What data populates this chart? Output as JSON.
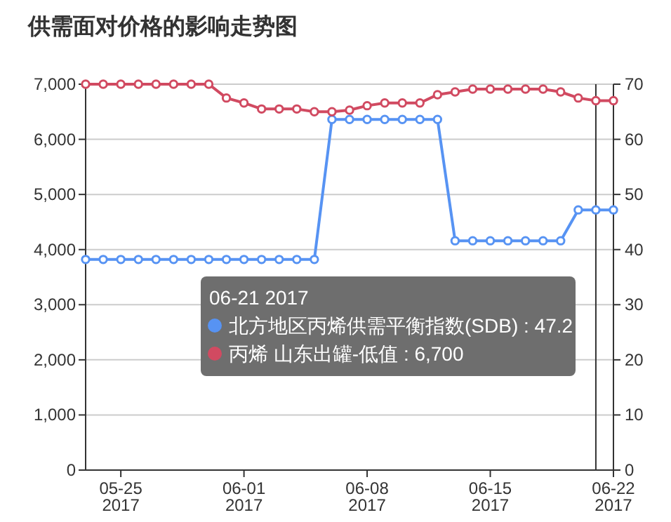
{
  "chart_data": {
    "type": "line",
    "title": "供需面对价格的影响走势图",
    "x": [
      "2017-05-23",
      "2017-05-24",
      "2017-05-25",
      "2017-05-26",
      "2017-05-27",
      "2017-05-28",
      "2017-05-29",
      "2017-05-30",
      "2017-05-31",
      "2017-06-01",
      "2017-06-02",
      "2017-06-03",
      "2017-06-04",
      "2017-06-05",
      "2017-06-06",
      "2017-06-07",
      "2017-06-08",
      "2017-06-09",
      "2017-06-10",
      "2017-06-11",
      "2017-06-12",
      "2017-06-13",
      "2017-06-14",
      "2017-06-15",
      "2017-06-16",
      "2017-06-17",
      "2017-06-18",
      "2017-06-19",
      "2017-06-20",
      "2017-06-21",
      "2017-06-22"
    ],
    "series": [
      {
        "color": "#5793f3",
        "axis": "y2",
        "values": [
          38.2,
          38.2,
          38.2,
          38.2,
          38.2,
          38.2,
          38.2,
          38.2,
          38.2,
          38.2,
          38.2,
          38.2,
          38.2,
          38.2,
          63.6,
          63.6,
          63.6,
          63.6,
          63.6,
          63.6,
          63.6,
          41.6,
          41.6,
          41.6,
          41.6,
          41.6,
          41.6,
          41.6,
          47.2,
          47.2,
          47.2
        ]
      },
      {
        "color": "#d14a61",
        "values": [
          7000,
          7000,
          7000,
          7000,
          7000,
          7000,
          7000,
          7000,
          6750,
          6660,
          6550,
          6550,
          6550,
          6500,
          6500,
          6530,
          6610,
          6660,
          6660,
          6660,
          6810,
          6860,
          6910,
          6910,
          6910,
          6910,
          6910,
          6860,
          6750,
          6700,
          6700
        ]
      }
    ],
    "xlim": [
      "2017-05-23",
      "2017-06-22"
    ],
    "xticks": [
      {
        "value": "2017-05-25",
        "label": "05-25 2017"
      },
      {
        "value": "2017-06-01",
        "label": "06-01 2017"
      },
      {
        "value": "2017-06-08",
        "label": "06-08 2017"
      },
      {
        "value": "2017-06-15",
        "label": "06-15 2017"
      },
      {
        "value": "2017-06-22",
        "label": "06-22 2017"
      }
    ],
    "ylim": [
      0,
      7000
    ],
    "yticks": [
      {
        "value": 0,
        "label": "0"
      },
      {
        "value": 1000,
        "label": "1,000"
      },
      {
        "value": 2000,
        "label": "2,000"
      },
      {
        "value": 3000,
        "label": "3,000"
      },
      {
        "value": 4000,
        "label": "4,000"
      },
      {
        "value": 5000,
        "label": "5,000"
      },
      {
        "value": 6000,
        "label": "6,000"
      },
      {
        "value": 7000,
        "label": "7,000"
      }
    ],
    "y2lim": [
      0,
      70
    ],
    "y2ticks": [
      0,
      10,
      20,
      30,
      40,
      50,
      60,
      70
    ],
    "ref_lines": [
      {
        "axis": "x",
        "value": "2017-06-21",
        "color": "#333333"
      }
    ],
    "annotations": [
      "06-21 2017",
      "北方地区丙烯供需平衡指数(SDB) : 47.2",
      "丙烯 山东出罐-低值 : 6,700"
    ],
    "grid": "y",
    "marker": "circle",
    "line_style": "solid"
  }
}
